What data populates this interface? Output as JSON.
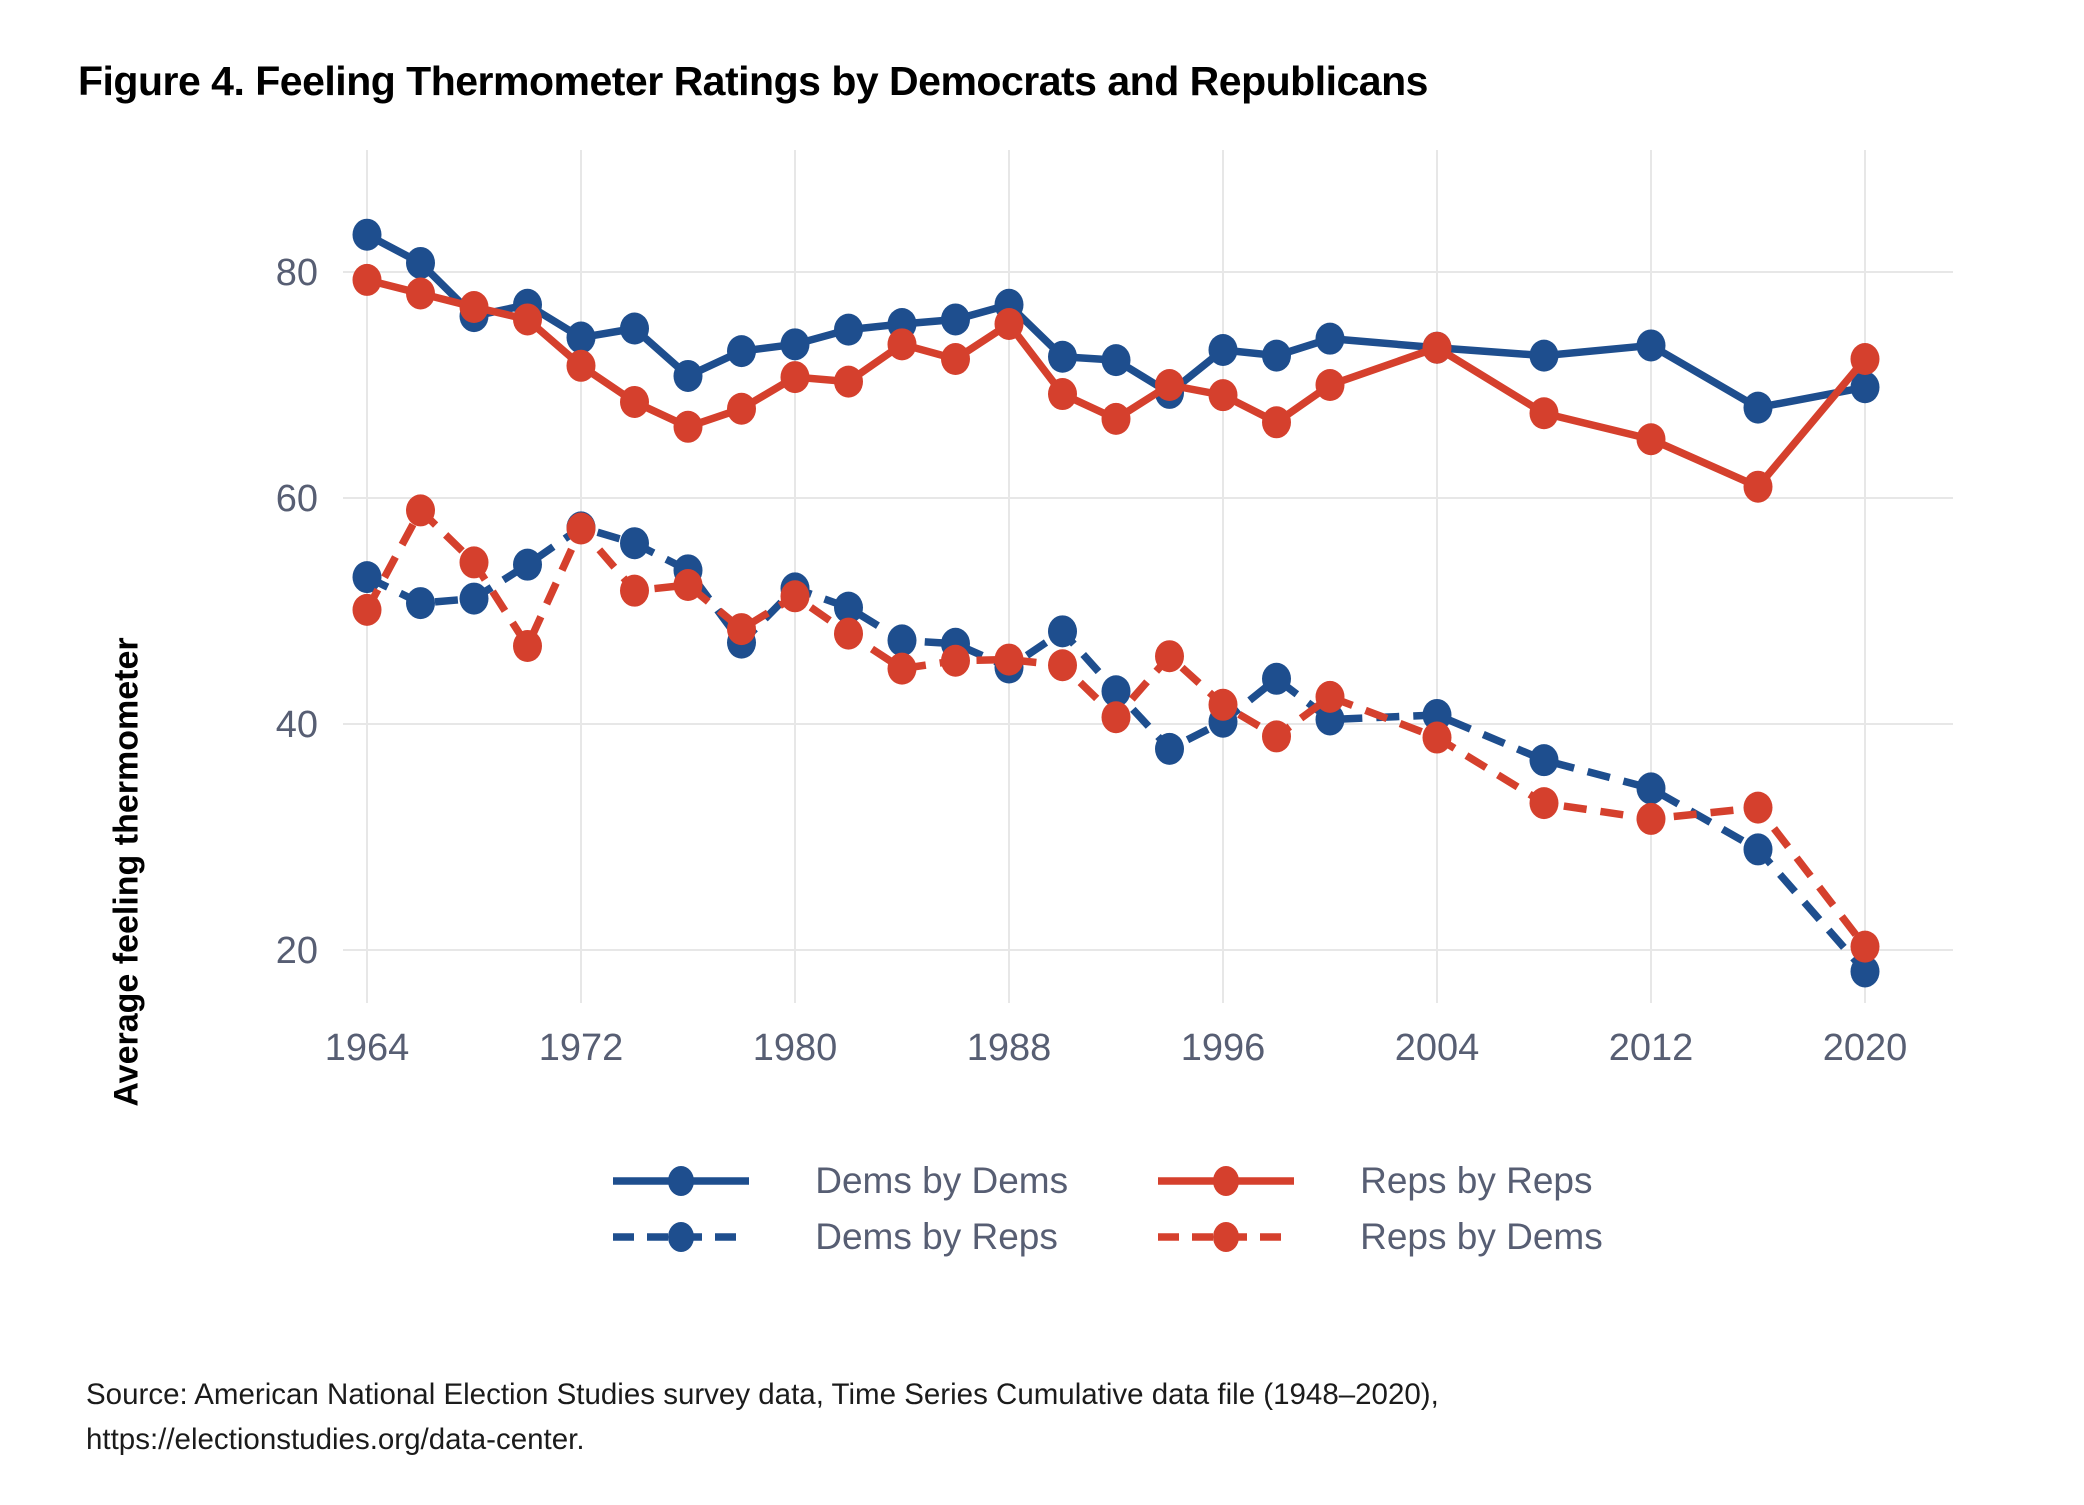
{
  "title": "Figure 4. Feeling Thermometer Ratings by Democrats and Republicans",
  "y_axis_label": "Average feeling thermometer",
  "colors": {
    "dem_blue": "#1e4e8e",
    "rep_red": "#d5402d",
    "axis_text": "#575e73",
    "gridline": "#e7e7e7",
    "title_text": "#000000",
    "source_text": "#1b1b1b"
  },
  "chart_data": {
    "type": "line",
    "title": "Figure 4. Feeling Thermometer Ratings by Democrats and Republicans",
    "xlabel": "",
    "ylabel": "Average feeling thermometer",
    "grid": true,
    "legend_position": "bottom",
    "x_ticks": [
      1964,
      1972,
      1980,
      1988,
      1996,
      2004,
      2012,
      2020
    ],
    "y_ticks": [
      20,
      40,
      60,
      80
    ],
    "xlim": [
      1962,
      2023
    ],
    "ylim": [
      14,
      88
    ],
    "x": [
      1964,
      1966,
      1968,
      1970,
      1972,
      1974,
      1976,
      1978,
      1980,
      1982,
      1984,
      1986,
      1988,
      1990,
      1992,
      1994,
      1996,
      1998,
      2000,
      2004,
      2008,
      2012,
      2016,
      2020
    ],
    "series": [
      {
        "name": "Dems by Dems",
        "color_key": "dem_blue",
        "style": "solid",
        "values": [
          83.3,
          80.8,
          76.1,
          77.1,
          74.2,
          75.0,
          70.8,
          73.0,
          73.6,
          74.9,
          75.4,
          75.8,
          77.1,
          72.5,
          72.2,
          69.3,
          73.1,
          72.6,
          74.1,
          73.3,
          72.6,
          73.5,
          68.0,
          69.8
        ]
      },
      {
        "name": "Reps by Reps",
        "color_key": "rep_red",
        "style": "solid",
        "values": [
          79.3,
          78.1,
          76.9,
          75.8,
          71.7,
          68.5,
          66.3,
          67.9,
          70.7,
          70.3,
          73.6,
          72.3,
          75.4,
          69.2,
          67.0,
          70.0,
          69.1,
          66.7,
          70.0,
          73.3,
          67.5,
          65.2,
          61.0,
          72.3
        ]
      },
      {
        "name": "Dems by Reps",
        "color_key": "dem_blue",
        "style": "dashed",
        "values": [
          53.0,
          50.7,
          51.1,
          54.1,
          57.4,
          56.0,
          53.6,
          47.2,
          52.0,
          50.3,
          47.4,
          47.1,
          45.0,
          48.2,
          42.9,
          37.8,
          40.2,
          44.0,
          40.4,
          40.8,
          36.8,
          34.3,
          28.9,
          18.1
        ]
      },
      {
        "name": "Reps by Dems",
        "color_key": "rep_red",
        "style": "dashed",
        "values": [
          50.1,
          58.9,
          54.3,
          46.9,
          57.3,
          51.8,
          52.3,
          48.4,
          51.3,
          48.0,
          44.9,
          45.6,
          45.7,
          45.2,
          40.6,
          46.0,
          41.7,
          38.9,
          42.4,
          38.8,
          33.0,
          31.6,
          32.6,
          20.3
        ]
      }
    ]
  },
  "legend": {
    "items": [
      {
        "label": "Dems by Dems",
        "color_key": "dem_blue",
        "style": "solid"
      },
      {
        "label": "Reps by Reps",
        "color_key": "rep_red",
        "style": "solid"
      },
      {
        "label": "Dems by Reps",
        "color_key": "dem_blue",
        "style": "dashed"
      },
      {
        "label": "Reps by Dems",
        "color_key": "rep_red",
        "style": "dashed"
      }
    ]
  },
  "source": {
    "line1": "Source: American National Election Studies survey data, Time Series Cumulative data file (1948–2020),",
    "line2": "https://electionstudies.org/data-center."
  }
}
